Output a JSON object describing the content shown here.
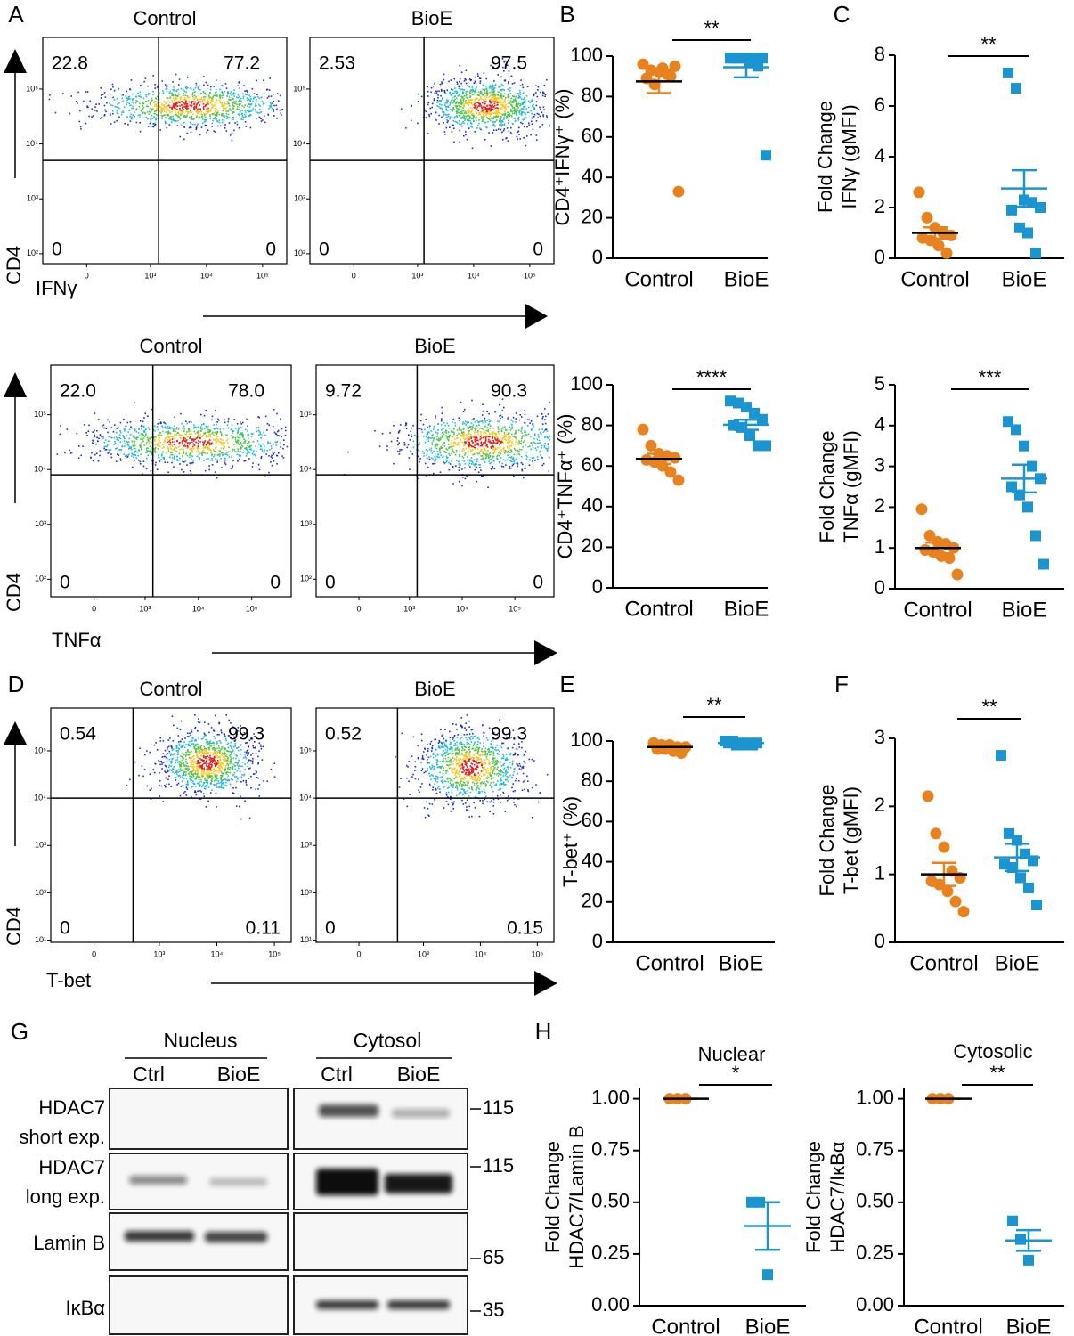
{
  "panel_labels": [
    "A",
    "B",
    "C",
    "D",
    "E",
    "F",
    "G",
    "H"
  ],
  "flow_rows": [
    {
      "xlabel": "IFNγ",
      "ylabel": "CD4",
      "xlim": [
        12,
        270000
      ],
      "ylim": [
        66,
        870000
      ],
      "xticks": [
        0,
        {
          "value": 1000,
          "label": "10³"
        },
        {
          "value": 10000,
          "label": "10⁴"
        },
        {
          "value": 100000,
          "label": "10⁵"
        }
      ],
      "yticks": [
        {
          "value": 100,
          "label": "10²"
        },
        {
          "value": 1000,
          "label": "10³"
        },
        {
          "value": 10000,
          "label": "10⁴"
        },
        {
          "value": 100000,
          "label": "10⁵"
        }
      ],
      "plots": [
        {
          "title": "Control",
          "quadrants": [
            22.8,
            77.2,
            0,
            0
          ],
          "gate": [
            1400,
            5000
          ]
        },
        {
          "title": "BioE",
          "quadrants": [
            2.53,
            97.5,
            0,
            0
          ],
          "gate": [
            1300,
            5000
          ]
        }
      ]
    },
    {
      "xlabel": "TNFα",
      "ylabel": "CD4",
      "xlim": [
        17,
        550000
      ],
      "ylim": [
        48,
        800000
      ],
      "xticks": [
        0,
        {
          "value": 1000,
          "label": "10³"
        },
        {
          "value": 10000,
          "label": "10⁴"
        },
        {
          "value": 100000,
          "label": "10⁵"
        }
      ],
      "yticks": [
        {
          "value": 100,
          "label": "10²"
        },
        {
          "value": 1000,
          "label": "10³"
        },
        {
          "value": 10000,
          "label": "10⁴"
        },
        {
          "value": 100000,
          "label": "10⁵"
        }
      ],
      "plots": [
        {
          "title": "Control",
          "quadrants": [
            22,
            78,
            0,
            0
          ],
          "value_labels": [
            "22.0",
            "78.0",
            "0",
            "0"
          ],
          "gate": [
            1400,
            8000
          ]
        },
        {
          "title": "BioE",
          "quadrants": [
            9.72,
            90.3,
            0,
            0
          ],
          "gate": [
            1400,
            8000
          ]
        }
      ]
    },
    {
      "xlabel": "T-bet",
      "ylabel": "CD4",
      "xlim": [
        13,
        196000
      ],
      "ylim": [
        9,
        800000
      ],
      "xticks": [
        0,
        {
          "value": 1000,
          "label": "10³"
        },
        {
          "value": 10000,
          "label": "10⁴"
        },
        {
          "value": 100000,
          "label": "10⁵"
        }
      ],
      "yticks": [
        {
          "value": 10,
          "label": "10¹"
        },
        {
          "value": 100,
          "label": "10²"
        },
        {
          "value": 1000,
          "label": "10³"
        },
        {
          "value": 10000,
          "label": "10⁴"
        },
        {
          "value": 100000,
          "label": "10⁵"
        }
      ],
      "plots": [
        {
          "title": "Control",
          "quadrants": [
            0.54,
            99.3,
            0,
            0.11
          ],
          "gate": [
            350,
            10000
          ]
        },
        {
          "title": "BioE",
          "quadrants": [
            0.52,
            99.3,
            0,
            0.15
          ],
          "gate": [
            350,
            10000
          ]
        }
      ]
    }
  ],
  "chart_data": [
    {
      "type": "dotplot",
      "ylabel": [
        "CD4⁺IFNγ⁺ (%)"
      ],
      "significance": "**",
      "ylim": [
        0,
        100
      ],
      "yticks": [
        0,
        20,
        40,
        60,
        80,
        100
      ],
      "series": [
        {
          "name": "Control",
          "color": "#e8821e",
          "marker": "circle",
          "values": [
            96,
            93,
            92,
            91,
            95,
            89,
            86,
            94,
            90,
            33
          ],
          "mean": 87.5,
          "sem": 5.8
        },
        {
          "name": "BioE",
          "color": "#1b95d2",
          "marker": "square",
          "values": [
            99,
            99,
            99,
            99,
            99,
            99,
            99,
            97,
            95,
            51
          ],
          "mean": 94.5,
          "sem": 5
        }
      ]
    },
    {
      "type": "dotplot",
      "ylabel": [
        "Fold Change",
        "IFNγ (gMFI)"
      ],
      "significance": "**",
      "ylim": [
        0,
        8
      ],
      "yticks": [
        0,
        2,
        4,
        6,
        8
      ],
      "series": [
        {
          "name": "Control",
          "color": "#e8821e",
          "marker": "circle",
          "values": [
            2.6,
            1.6,
            1.2,
            1.0,
            0.9,
            0.8,
            0.7,
            0.5,
            0.2
          ],
          "mean": 1.0,
          "sem": 0.22
        },
        {
          "name": "BioE",
          "color": "#1b95d2",
          "marker": "square",
          "values": [
            7.3,
            6.7,
            2.3,
            2.2,
            2.0,
            1.9,
            1.2,
            1.0,
            0.2
          ],
          "mean": 2.75,
          "sem": 0.72
        }
      ]
    },
    {
      "type": "dotplot",
      "ylabel": [
        "CD4⁺TNFα⁺ (%)"
      ],
      "significance": "****",
      "ylim": [
        0,
        100
      ],
      "yticks": [
        0,
        20,
        40,
        60,
        80,
        100
      ],
      "series": [
        {
          "name": "Control",
          "color": "#e8821e",
          "marker": "circle",
          "values": [
            78,
            70,
            66,
            65,
            64,
            63,
            62,
            60,
            57,
            53
          ],
          "mean": 63.5,
          "sem": 2.5
        },
        {
          "name": "BioE",
          "color": "#1b95d2",
          "marker": "square",
          "values": [
            92,
            91,
            89,
            86,
            83,
            80,
            79,
            75,
            70,
            70
          ],
          "mean": 80.3,
          "sem": 2.5
        }
      ]
    },
    {
      "type": "dotplot",
      "ylabel": [
        "Fold Change",
        "TNFα (gMFI)"
      ],
      "significance": "***",
      "ylim": [
        0,
        5
      ],
      "yticks": [
        0,
        1,
        2,
        3,
        4,
        5
      ],
      "series": [
        {
          "name": "Control",
          "color": "#e8821e",
          "marker": "circle",
          "values": [
            1.95,
            1.3,
            1.15,
            1.1,
            1.0,
            0.95,
            0.9,
            0.8,
            0.75,
            0.35
          ],
          "mean": 1.0,
          "sem": 0.13
        },
        {
          "name": "BioE",
          "color": "#1b95d2",
          "marker": "square",
          "values": [
            4.1,
            3.9,
            3.5,
            3.0,
            2.7,
            2.5,
            2.3,
            2.0,
            1.3,
            0.6
          ],
          "mean": 2.7,
          "sem": 0.34
        }
      ]
    },
    {
      "type": "dotplot",
      "ylabel": [
        "T-bet⁺ (%)"
      ],
      "significance": "**",
      "ylim": [
        0,
        100
      ],
      "yticks": [
        0,
        20,
        40,
        60,
        80,
        100
      ],
      "series": [
        {
          "name": "Control",
          "color": "#e8821e",
          "marker": "circle",
          "values": [
            99,
            98,
            98,
            97,
            97,
            96,
            96,
            95,
            94
          ],
          "mean": 97,
          "sem": 0.6
        },
        {
          "name": "BioE",
          "color": "#1b95d2",
          "marker": "square",
          "values": [
            100,
            100,
            99,
            99,
            99,
            99,
            98,
            98,
            98
          ],
          "mean": 99,
          "sem": 0.3
        }
      ]
    },
    {
      "type": "dotplot",
      "ylabel": [
        "Fold Change",
        "T-bet (gMFI)"
      ],
      "significance": "**",
      "ylim": [
        0,
        3
      ],
      "yticks": [
        0,
        1,
        2,
        3
      ],
      "series": [
        {
          "name": "Control",
          "color": "#e8821e",
          "marker": "circle",
          "values": [
            2.15,
            1.6,
            1.4,
            1.05,
            0.95,
            0.9,
            0.85,
            0.75,
            0.6,
            0.45
          ],
          "mean": 1.0,
          "sem": 0.17
        },
        {
          "name": "BioE",
          "color": "#1b95d2",
          "marker": "square",
          "values": [
            2.75,
            1.6,
            1.5,
            1.3,
            1.2,
            1.15,
            1.1,
            0.95,
            0.8,
            0.55
          ],
          "mean": 1.25,
          "sem": 0.2
        }
      ]
    },
    {
      "type": "dotplot",
      "title": "Nuclear",
      "ylabel": [
        "Fold Change",
        "HDAC7/Lamin B"
      ],
      "significance": "*",
      "ylim": [
        0,
        1.05
      ],
      "yticks": [
        {
          "value": 0,
          "label": "0.00"
        },
        0.25,
        {
          "value": 0.5,
          "label": "0.50"
        },
        0.75,
        {
          "value": 1,
          "label": "1.00"
        }
      ],
      "series": [
        {
          "name": "Control",
          "color": "#e8821e",
          "marker": "circle",
          "values": [
            1,
            1,
            1
          ],
          "mean": 1,
          "sem": 0
        },
        {
          "name": "BioE",
          "color": "#1b95d2",
          "marker": "square",
          "values": [
            0.5,
            0.5,
            0.15
          ],
          "mean": 0.385,
          "sem": 0.115
        }
      ]
    },
    {
      "type": "dotplot",
      "title": "Cytosolic",
      "ylabel": [
        "Fold Change",
        "HDAC7/IκBα"
      ],
      "significance": "**",
      "ylim": [
        0,
        1.05
      ],
      "yticks": [
        {
          "value": 0,
          "label": "0.00"
        },
        0.25,
        {
          "value": 0.5,
          "label": "0.50"
        },
        0.75,
        {
          "value": 1,
          "label": "1.00"
        }
      ],
      "series": [
        {
          "name": "Control",
          "color": "#e8821e",
          "marker": "circle",
          "values": [
            1,
            1,
            1
          ],
          "mean": 1,
          "sem": 0
        },
        {
          "name": "BioE",
          "color": "#1b95d2",
          "marker": "square",
          "values": [
            0.41,
            0.32,
            0.22
          ],
          "mean": 0.315,
          "sem": 0.05
        }
      ]
    }
  ],
  "blot": {
    "groups": [
      "Nucleus",
      "Cytosol"
    ],
    "lanes": [
      "Ctrl",
      "BioE",
      "Ctrl",
      "BioE"
    ],
    "rows": [
      [
        "HDAC7",
        "short exp."
      ],
      [
        "HDAC7",
        "long exp."
      ],
      [
        "Lamin B"
      ],
      [
        "IκBα"
      ]
    ],
    "markers": [
      115,
      115,
      65,
      35
    ]
  }
}
